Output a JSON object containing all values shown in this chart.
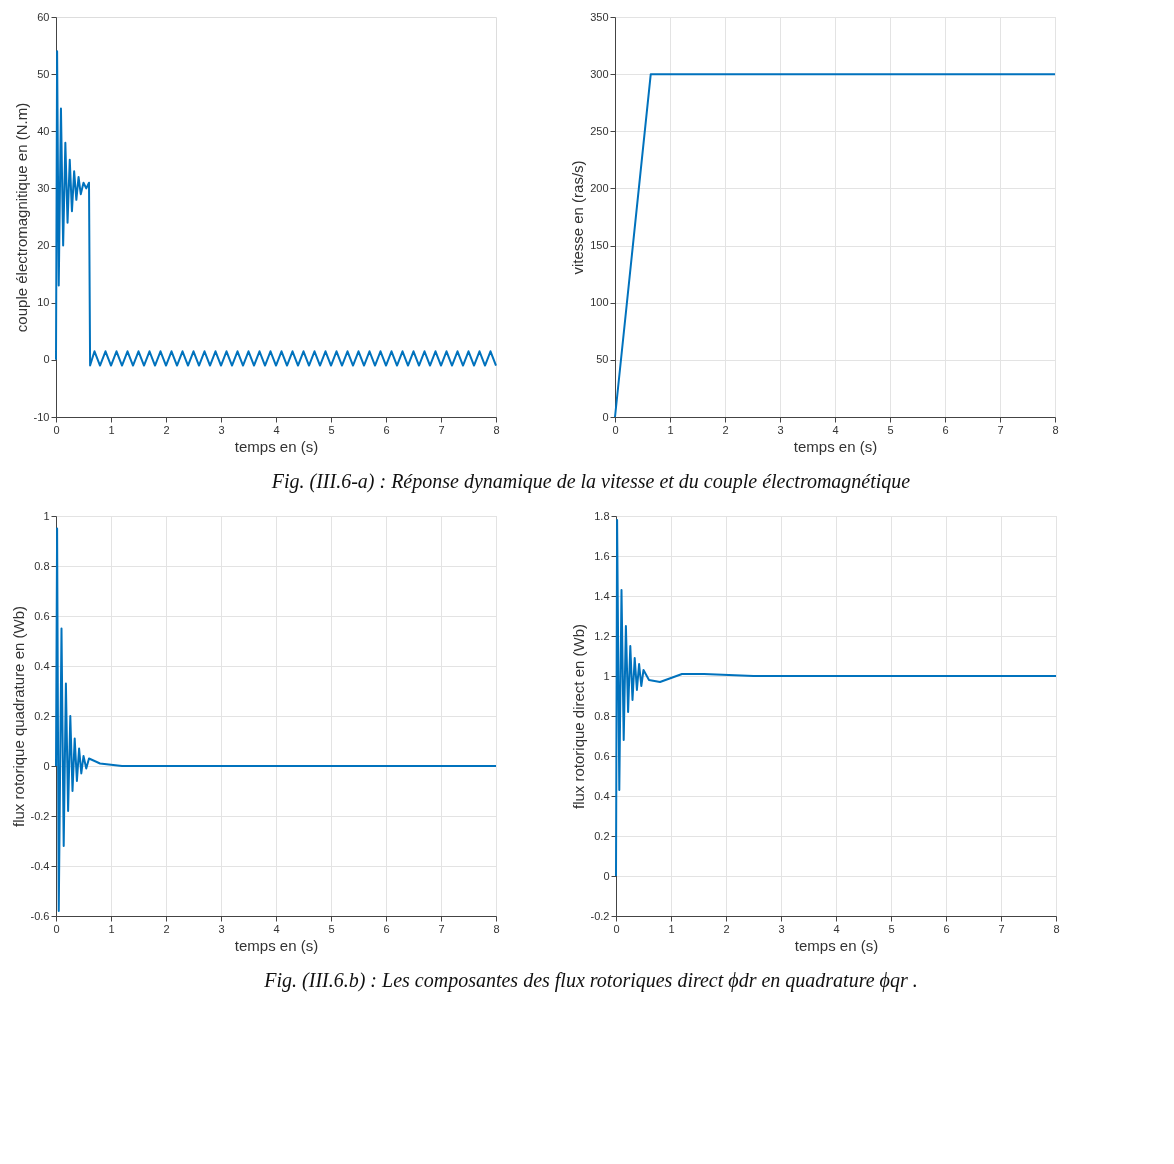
{
  "chart_data": [
    {
      "type": "line",
      "xlabel": "temps en (s)",
      "ylabel": "couple électromagnitique en (N.m)",
      "xlim": [
        0,
        8
      ],
      "ylim": [
        -10,
        60
      ],
      "xticks": [
        0,
        1,
        2,
        3,
        4,
        5,
        6,
        7,
        8
      ],
      "yticks": [
        -10,
        0,
        10,
        20,
        30,
        40,
        50,
        60
      ],
      "grid": false,
      "annotations": [
        "Fig. (III.6-a) : Réponse dynamique de la vitesse et du couple électromagnétique"
      ],
      "series": [
        {
          "color": "#0072bd",
          "x": [
            0,
            0.02,
            0.05,
            0.09,
            0.13,
            0.17,
            0.21,
            0.25,
            0.29,
            0.33,
            0.37,
            0.41,
            0.45,
            0.5,
            0.55,
            0.6,
            0.62,
            0.7,
            0.8,
            0.9,
            1.0,
            1.1,
            1.2,
            1.3,
            1.4,
            1.5,
            1.6,
            1.7,
            1.8,
            1.9,
            2.0,
            2.1,
            2.2,
            2.3,
            2.4,
            2.5,
            2.6,
            2.7,
            2.8,
            2.9,
            3.0,
            3.1,
            3.2,
            3.3,
            3.4,
            3.5,
            3.6,
            3.7,
            3.8,
            3.9,
            4.0,
            4.1,
            4.2,
            4.3,
            4.4,
            4.5,
            4.6,
            4.7,
            4.8,
            4.9,
            5.0,
            5.1,
            5.2,
            5.3,
            5.4,
            5.5,
            5.6,
            5.7,
            5.8,
            5.9,
            6.0,
            6.1,
            6.2,
            6.3,
            6.4,
            6.5,
            6.6,
            6.7,
            6.8,
            6.9,
            7.0,
            7.1,
            7.2,
            7.3,
            7.4,
            7.5,
            7.6,
            7.7,
            7.8,
            7.9,
            8.0
          ],
          "values": [
            0,
            54,
            13,
            44,
            20,
            38,
            24,
            35,
            26,
            33,
            28,
            32,
            29,
            31,
            30,
            31,
            -1,
            1.5,
            -1,
            1.5,
            -1,
            1.5,
            -1,
            1.5,
            -1,
            1.5,
            -1,
            1.5,
            -1,
            1.5,
            -1,
            1.5,
            -1,
            1.5,
            -1,
            1.5,
            -1,
            1.5,
            -1,
            1.5,
            -1,
            1.5,
            -1,
            1.5,
            -1,
            1.5,
            -1,
            1.5,
            -1,
            1.5,
            -1,
            1.5,
            -1,
            1.5,
            -1,
            1.5,
            -1,
            1.5,
            -1,
            1.5,
            -1,
            1.5,
            -1,
            1.5,
            -1,
            1.5,
            -1,
            1.5,
            -1,
            1.5,
            -1,
            1.5,
            -1,
            1.5,
            -1,
            1.5,
            -1,
            1.5,
            -1,
            1.5,
            -1,
            1.5,
            -1,
            1.5,
            -1,
            1.5,
            -1,
            1.5,
            -1,
            1.5,
            -1
          ]
        }
      ]
    },
    {
      "type": "line",
      "xlabel": "temps en (s)",
      "ylabel": "vitesse en (ras/s)",
      "xlim": [
        0,
        8
      ],
      "ylim": [
        0,
        350
      ],
      "xticks": [
        0,
        1,
        2,
        3,
        4,
        5,
        6,
        7,
        8
      ],
      "yticks": [
        0,
        50,
        100,
        150,
        200,
        250,
        300,
        350
      ],
      "grid": true,
      "series": [
        {
          "color": "#0072bd",
          "x": [
            0,
            0.65,
            8
          ],
          "values": [
            0,
            300,
            300
          ]
        }
      ]
    },
    {
      "type": "line",
      "xlabel": "temps en (s)",
      "ylabel": "flux rotorique quadrature en (Wb)",
      "xlim": [
        0,
        8
      ],
      "ylim": [
        -0.6,
        1
      ],
      "xticks": [
        0,
        1,
        2,
        3,
        4,
        5,
        6,
        7,
        8
      ],
      "yticks": [
        -0.6,
        -0.4,
        -0.2,
        0,
        0.2,
        0.4,
        0.6,
        0.8,
        1
      ],
      "grid": true,
      "annotations": [
        "Fig. (III.6.b) : Les composantes des flux rotoriques direct ϕdr en quadrature ϕqr ."
      ],
      "series": [
        {
          "color": "#0072bd",
          "x": [
            0,
            0.02,
            0.05,
            0.1,
            0.14,
            0.18,
            0.22,
            0.26,
            0.3,
            0.34,
            0.38,
            0.42,
            0.46,
            0.5,
            0.55,
            0.6,
            0.8,
            1.2,
            8
          ],
          "values": [
            0,
            0.95,
            -0.58,
            0.55,
            -0.32,
            0.33,
            -0.18,
            0.2,
            -0.1,
            0.11,
            -0.06,
            0.07,
            -0.03,
            0.04,
            -0.01,
            0.03,
            0.01,
            0,
            0
          ]
        }
      ]
    },
    {
      "type": "line",
      "xlabel": "temps en (s)",
      "ylabel": "flux rotorique direct en (Wb)",
      "xlim": [
        0,
        8
      ],
      "ylim": [
        -0.2,
        1.8
      ],
      "xticks": [
        0,
        1,
        2,
        3,
        4,
        5,
        6,
        7,
        8
      ],
      "yticks": [
        -0.2,
        0,
        0.2,
        0.4,
        0.6,
        0.8,
        1,
        1.2,
        1.4,
        1.6,
        1.8
      ],
      "grid": true,
      "series": [
        {
          "color": "#0072bd",
          "x": [
            0,
            0.02,
            0.06,
            0.1,
            0.14,
            0.18,
            0.22,
            0.26,
            0.3,
            0.34,
            0.38,
            0.42,
            0.46,
            0.5,
            0.6,
            0.8,
            1.2,
            1.6,
            2.5,
            8
          ],
          "values": [
            0,
            1.78,
            0.43,
            1.43,
            0.68,
            1.25,
            0.82,
            1.15,
            0.88,
            1.09,
            0.93,
            1.06,
            0.95,
            1.03,
            0.98,
            0.97,
            1.01,
            1.01,
            1.0,
            1.0
          ]
        }
      ]
    }
  ]
}
